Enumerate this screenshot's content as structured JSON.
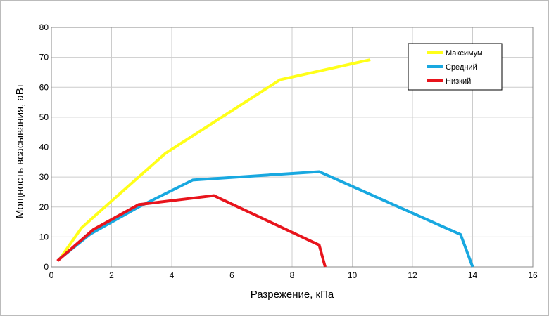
{
  "chart_data": {
    "type": "line",
    "xlabel": "Разрежение, кПа",
    "ylabel": "Мощность всасывания, аВт",
    "xlim": [
      0,
      16
    ],
    "xticks": [
      0,
      2,
      4,
      6,
      8,
      10,
      12,
      14,
      16
    ],
    "ylim": [
      0,
      80
    ],
    "yticks": [
      0,
      10,
      20,
      30,
      40,
      50,
      60,
      70,
      80
    ],
    "grid": true,
    "legend": "upper-right",
    "series": [
      {
        "name": "Максимум",
        "color": "#ffff19",
        "x": [
          0.3,
          1,
          2,
          3.8,
          7.6,
          10.6
        ],
        "values": [
          3,
          13,
          22,
          38,
          62.5,
          69.2
        ]
      },
      {
        "name": "Средний",
        "color": "#18a8e0",
        "x": [
          0.25,
          1.3,
          2.9,
          4.7,
          8.9,
          13.6,
          14
        ],
        "values": [
          2.5,
          11,
          20,
          29,
          31.8,
          10.8,
          0
        ]
      },
      {
        "name": "Низкий",
        "color": "#e8141c",
        "x": [
          0.2,
          1.4,
          2.9,
          5.4,
          8.9,
          9.1
        ],
        "values": [
          2,
          12.5,
          20.8,
          23.8,
          7.3,
          0
        ]
      }
    ]
  }
}
